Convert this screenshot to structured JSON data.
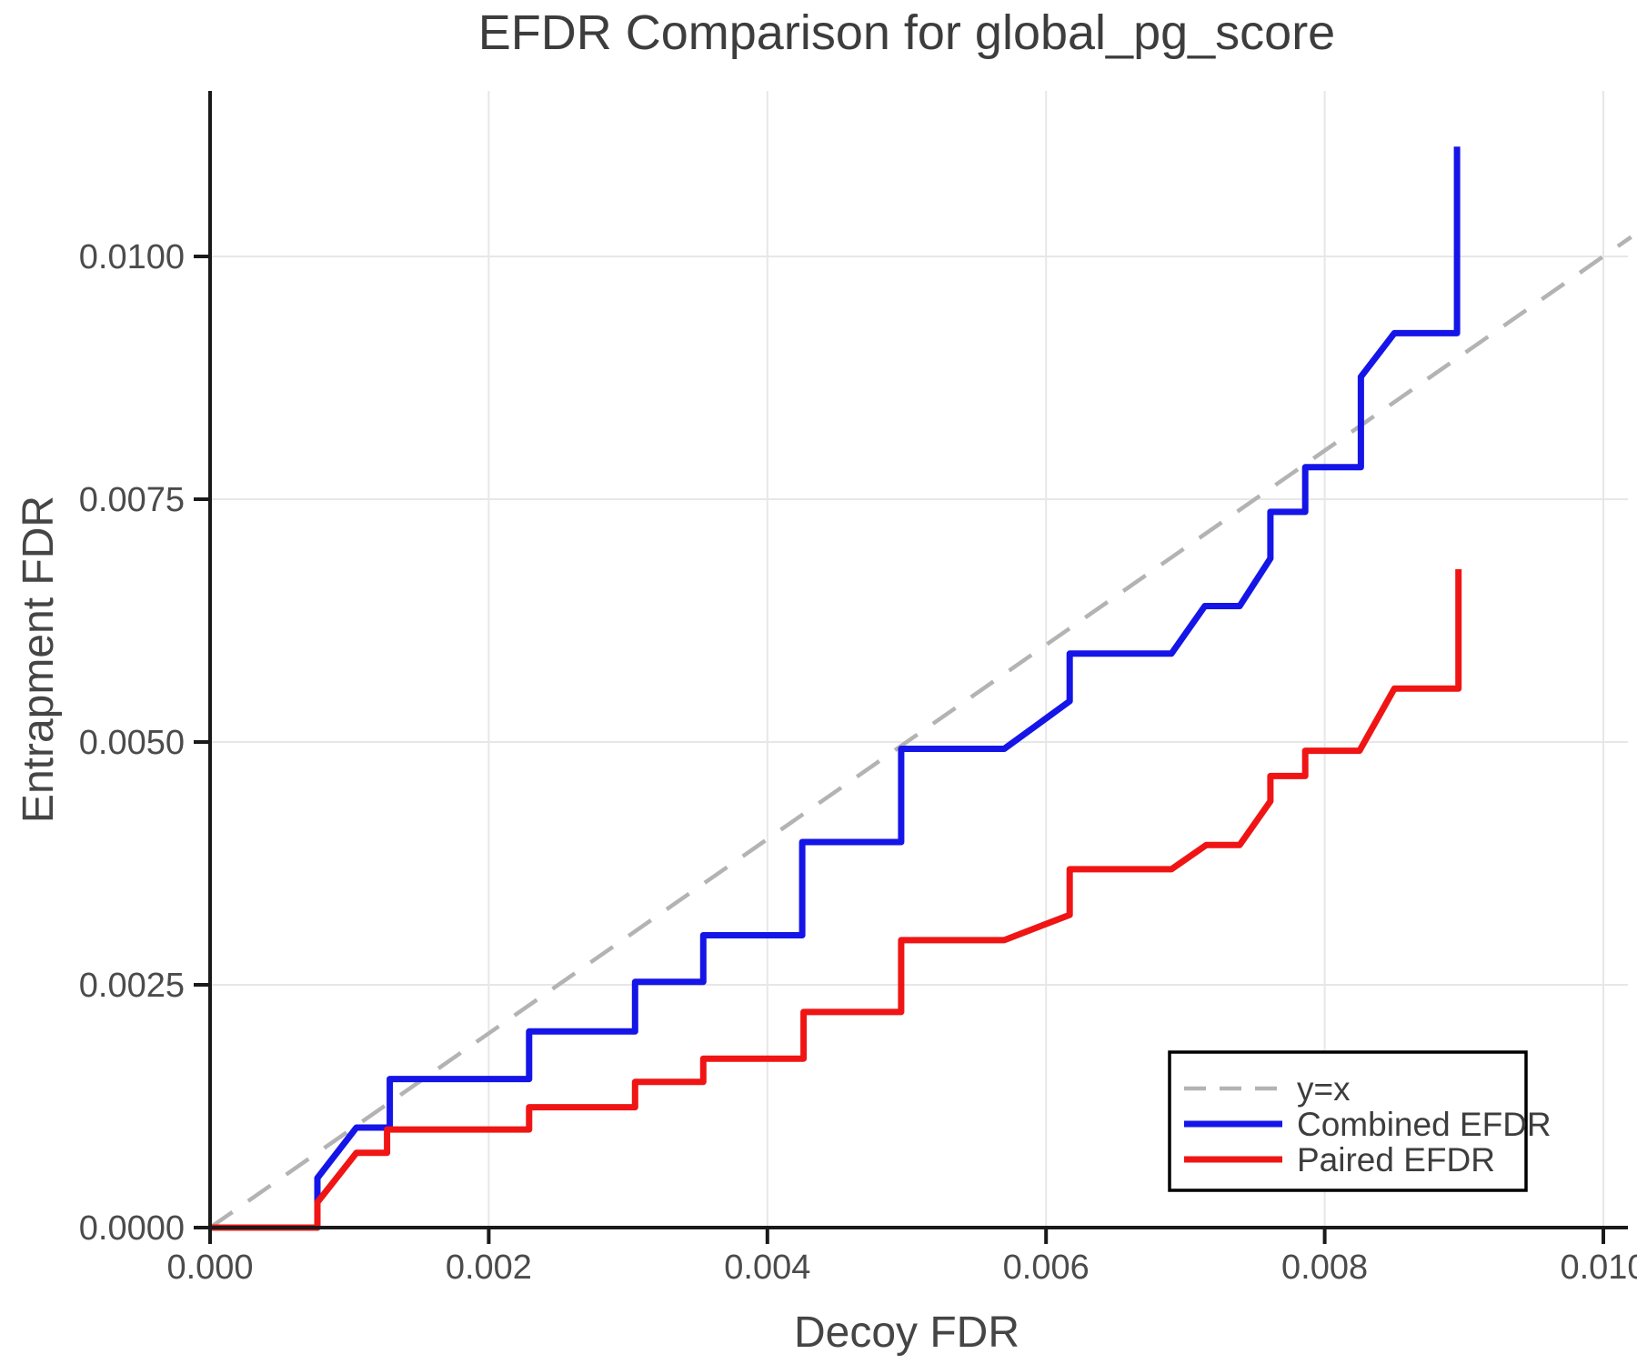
{
  "chart_data": {
    "type": "line",
    "title": "EFDR Comparison for global_pg_score",
    "xlabel": "Decoy FDR",
    "ylabel": "Entrapment FDR",
    "xlim": [
      0.0,
      0.0102
    ],
    "ylim": [
      0.0,
      0.0117
    ],
    "grid": true,
    "legend_position": "bottom-right",
    "x_ticks": [
      {
        "value": 0.0,
        "label": "0.000"
      },
      {
        "value": 0.002,
        "label": "0.002"
      },
      {
        "value": 0.004,
        "label": "0.004"
      },
      {
        "value": 0.006,
        "label": "0.006"
      },
      {
        "value": 0.008,
        "label": "0.008"
      },
      {
        "value": 0.01,
        "label": "0.010"
      }
    ],
    "y_ticks": [
      {
        "value": 0.0,
        "label": "0.0000"
      },
      {
        "value": 0.0025,
        "label": "0.0025"
      },
      {
        "value": 0.005,
        "label": "0.0050"
      },
      {
        "value": 0.0075,
        "label": "0.0075"
      },
      {
        "value": 0.01,
        "label": "0.0100"
      }
    ],
    "series": [
      {
        "name": "y=x",
        "color": "#b3b3b3",
        "style": "dashed",
        "points": [
          [
            0.0,
            0.0
          ],
          [
            0.0102,
            0.0102
          ]
        ]
      },
      {
        "name": "Combined EFDR",
        "color": "#1515e8",
        "style": "solid",
        "points": [
          [
            0.0,
            0.0
          ],
          [
            0.00077,
            0.0
          ],
          [
            0.00077,
            0.00051
          ],
          [
            0.00105,
            0.00103
          ],
          [
            0.00129,
            0.00103
          ],
          [
            0.00129,
            0.00153
          ],
          [
            0.00229,
            0.00153
          ],
          [
            0.00229,
            0.00202
          ],
          [
            0.00305,
            0.00202
          ],
          [
            0.00305,
            0.00253
          ],
          [
            0.00354,
            0.00253
          ],
          [
            0.00354,
            0.00301
          ],
          [
            0.00425,
            0.00301
          ],
          [
            0.00425,
            0.00397
          ],
          [
            0.00496,
            0.00397
          ],
          [
            0.00496,
            0.00493
          ],
          [
            0.0057,
            0.00493
          ],
          [
            0.00617,
            0.00542
          ],
          [
            0.00617,
            0.00591
          ],
          [
            0.0069,
            0.00591
          ],
          [
            0.00714,
            0.0064
          ],
          [
            0.00739,
            0.0064
          ],
          [
            0.00761,
            0.00689
          ],
          [
            0.00761,
            0.00737
          ],
          [
            0.00786,
            0.00737
          ],
          [
            0.00786,
            0.00783
          ],
          [
            0.00826,
            0.00783
          ],
          [
            0.00826,
            0.00876
          ],
          [
            0.0085,
            0.00921
          ],
          [
            0.00895,
            0.00921
          ],
          [
            0.00895,
            0.01113
          ]
        ]
      },
      {
        "name": "Paired EFDR",
        "color": "#f01515",
        "style": "solid",
        "points": [
          [
            0.0,
            0.0
          ],
          [
            0.00077,
            0.0
          ],
          [
            0.00077,
            0.00026
          ],
          [
            0.00105,
            0.00077
          ],
          [
            0.00127,
            0.00077
          ],
          [
            0.00127,
            0.00101
          ],
          [
            0.00229,
            0.00101
          ],
          [
            0.00229,
            0.00124
          ],
          [
            0.00305,
            0.00124
          ],
          [
            0.00305,
            0.0015
          ],
          [
            0.00354,
            0.0015
          ],
          [
            0.00354,
            0.00174
          ],
          [
            0.00426,
            0.00174
          ],
          [
            0.00426,
            0.00222
          ],
          [
            0.00496,
            0.00222
          ],
          [
            0.00496,
            0.00296
          ],
          [
            0.0057,
            0.00296
          ],
          [
            0.00617,
            0.00322
          ],
          [
            0.00617,
            0.00369
          ],
          [
            0.0069,
            0.00369
          ],
          [
            0.00715,
            0.00394
          ],
          [
            0.00739,
            0.00394
          ],
          [
            0.00761,
            0.00439
          ],
          [
            0.00761,
            0.00465
          ],
          [
            0.00786,
            0.00465
          ],
          [
            0.00786,
            0.00491
          ],
          [
            0.00825,
            0.00491
          ],
          [
            0.0085,
            0.00555
          ],
          [
            0.00896,
            0.00555
          ],
          [
            0.00896,
            0.00678
          ]
        ]
      }
    ]
  }
}
